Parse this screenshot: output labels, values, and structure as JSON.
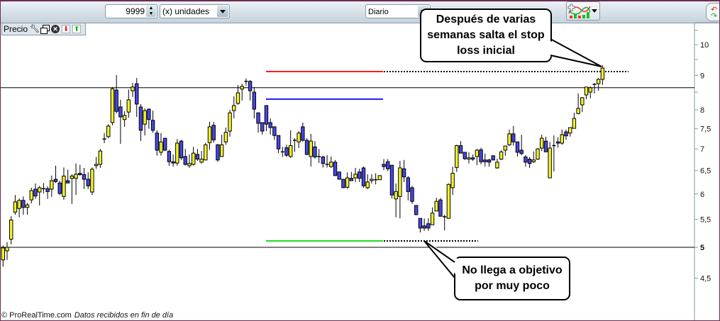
{
  "toolbar": {
    "units_value": "9999",
    "units_select": "(x) unidades",
    "period_select": "Diario",
    "indicator_button_icon": "add-indicator-icon",
    "right_icon": "arrows-cycle-icon"
  },
  "panel": {
    "label": "Precio",
    "icons": [
      "wrench-icon",
      "windows-icon",
      "close-circle-icon",
      "move-down-icon",
      "move-up-icon"
    ]
  },
  "callouts": {
    "top": [
      "Después de varias",
      "semanas salta el stop",
      "loss inicial"
    ],
    "bottom": [
      "No llega a objetivo",
      "por muy poco"
    ]
  },
  "footer": {
    "copyright": "© ProRealTime.com",
    "status": "Datos recibidos en fin de día"
  },
  "chart_data": {
    "type": "candlestick",
    "period": "Diario",
    "yscale": "log",
    "ylim": [
      4.1,
      10.8
    ],
    "yticks": [
      "10",
      "9",
      "8",
      "7,5",
      "7",
      "6,5",
      "6",
      "5,5",
      "5",
      "4,5"
    ],
    "ytick_values": [
      10,
      9,
      8,
      7.5,
      7,
      6.5,
      6,
      5.5,
      5,
      4.5
    ],
    "minor_ticks": [
      10.5,
      9.5,
      8.5
    ],
    "grid": false,
    "colors": {
      "up": "#f4f42a",
      "down": "#4646e8",
      "stop": "#ff1a1a",
      "entry": "#1a1aee",
      "target": "#22dd22"
    },
    "horizontal_lines": [
      8.63,
      5.0
    ],
    "levels": {
      "stop": {
        "value": 9.12,
        "color": "#ff1a1a"
      },
      "entry": {
        "value": 8.3,
        "color": "#1a1aee"
      },
      "target": {
        "value": 5.11,
        "color": "#22dd22"
      }
    },
    "ohlc_fields": [
      "open",
      "high",
      "low",
      "close"
    ],
    "ohlc": [
      [
        4.79,
        5.03,
        4.68,
        4.99
      ],
      [
        4.94,
        5.09,
        4.79,
        5.0
      ],
      [
        5.14,
        5.56,
        5.05,
        5.49
      ],
      [
        5.64,
        5.98,
        5.59,
        5.84
      ],
      [
        5.71,
        5.91,
        5.54,
        5.87
      ],
      [
        5.87,
        5.95,
        5.59,
        5.73
      ],
      [
        5.73,
        5.82,
        5.59,
        5.78
      ],
      [
        5.88,
        6.13,
        5.81,
        6.07
      ],
      [
        6.1,
        6.22,
        5.9,
        5.96
      ],
      [
        6.04,
        6.17,
        5.77,
        6.13
      ],
      [
        6.11,
        6.23,
        6.01,
        6.11
      ],
      [
        6.11,
        6.16,
        5.9,
        6.05
      ],
      [
        6.1,
        6.39,
        5.94,
        6.28
      ],
      [
        6.31,
        6.61,
        6.23,
        6.26
      ],
      [
        6.23,
        6.28,
        5.98,
        6.01
      ],
      [
        5.95,
        6.57,
        5.88,
        6.38
      ],
      [
        6.28,
        6.52,
        6.23,
        6.23
      ],
      [
        6.33,
        6.42,
        5.8,
        6.38
      ],
      [
        6.33,
        6.66,
        5.98,
        6.42
      ],
      [
        6.44,
        6.63,
        6.39,
        6.41
      ],
      [
        6.41,
        6.56,
        6.1,
        6.31
      ],
      [
        6.31,
        6.46,
        6.1,
        6.17
      ],
      [
        6.04,
        6.57,
        5.98,
        6.53
      ],
      [
        6.61,
        6.81,
        6.54,
        6.64
      ],
      [
        6.64,
        7.0,
        6.56,
        6.95
      ],
      [
        7.24,
        7.39,
        7.14,
        7.24
      ],
      [
        7.3,
        7.62,
        7.26,
        7.57
      ],
      [
        7.66,
        8.65,
        7.59,
        8.6
      ],
      [
        8.56,
        9.01,
        7.9,
        7.96
      ],
      [
        8.08,
        8.28,
        7.12,
        7.81
      ],
      [
        7.74,
        7.96,
        7.55,
        7.85
      ],
      [
        7.94,
        8.58,
        7.79,
        8.28
      ],
      [
        8.54,
        8.77,
        8.36,
        8.65
      ],
      [
        8.75,
        8.92,
        7.81,
        8.16
      ],
      [
        8.08,
        8.16,
        7.19,
        7.46
      ],
      [
        7.62,
        8.04,
        7.33,
        7.98
      ],
      [
        8.02,
        8.04,
        7.5,
        7.74
      ],
      [
        7.72,
        7.98,
        7.4,
        7.46
      ],
      [
        7.39,
        7.46,
        6.84,
        6.97
      ],
      [
        6.92,
        7.39,
        6.84,
        7.17
      ],
      [
        7.26,
        7.26,
        6.95,
        6.97
      ],
      [
        6.94,
        6.98,
        6.61,
        6.7
      ],
      [
        6.7,
        6.87,
        6.59,
        6.67
      ],
      [
        6.67,
        7.24,
        6.61,
        7.14
      ],
      [
        7.19,
        7.22,
        6.74,
        6.79
      ],
      [
        6.82,
        7.0,
        6.61,
        6.64
      ],
      [
        6.61,
        6.87,
        6.56,
        6.66
      ],
      [
        6.64,
        7.05,
        6.61,
        6.9
      ],
      [
        6.87,
        7.0,
        6.72,
        6.76
      ],
      [
        6.69,
        6.95,
        6.66,
        6.76
      ],
      [
        6.74,
        7.15,
        6.74,
        7.1
      ],
      [
        7.15,
        7.68,
        6.98,
        7.55
      ],
      [
        7.59,
        7.68,
        7.15,
        7.22
      ],
      [
        7.1,
        7.12,
        6.7,
        6.74
      ],
      [
        6.82,
        7.35,
        6.82,
        7.1
      ],
      [
        7.17,
        7.53,
        7.1,
        7.41
      ],
      [
        7.44,
        8.0,
        7.3,
        7.92
      ],
      [
        7.98,
        8.38,
        7.77,
        8.12
      ],
      [
        8.18,
        8.71,
        8.14,
        8.48
      ],
      [
        8.59,
        8.75,
        8.26,
        8.67
      ],
      [
        8.82,
        8.91,
        8.69,
        8.82
      ],
      [
        8.82,
        8.86,
        8.26,
        8.54
      ],
      [
        8.5,
        8.65,
        7.77,
        8.02
      ],
      [
        7.92,
        7.92,
        7.4,
        7.64
      ],
      [
        7.66,
        7.66,
        7.35,
        7.44
      ],
      [
        8.12,
        8.12,
        7.44,
        7.62
      ],
      [
        7.66,
        7.77,
        7.35,
        7.53
      ],
      [
        7.55,
        7.55,
        7.22,
        7.33
      ],
      [
        7.33,
        7.33,
        6.9,
        7.0
      ],
      [
        6.93,
        7.05,
        6.81,
        6.93
      ],
      [
        7.03,
        7.1,
        6.81,
        6.85
      ],
      [
        6.82,
        7.46,
        6.79,
        7.08
      ],
      [
        7.21,
        7.26,
        6.93,
        7.21
      ],
      [
        7.17,
        7.44,
        7.02,
        7.39
      ],
      [
        7.55,
        7.66,
        7.17,
        7.21
      ],
      [
        7.21,
        7.26,
        6.85,
        6.87
      ],
      [
        6.82,
        7.37,
        6.59,
        7.19
      ],
      [
        7.05,
        7.19,
        6.77,
        6.81
      ],
      [
        6.82,
        7.0,
        6.67,
        6.82
      ],
      [
        6.81,
        6.84,
        6.57,
        6.66
      ],
      [
        6.64,
        6.85,
        6.57,
        6.64
      ],
      [
        6.59,
        6.82,
        6.56,
        6.69
      ],
      [
        6.69,
        6.74,
        6.38,
        6.39
      ],
      [
        6.47,
        6.47,
        6.31,
        6.31
      ],
      [
        6.31,
        6.31,
        6.13,
        6.13
      ],
      [
        6.14,
        6.46,
        6.11,
        6.34
      ],
      [
        6.33,
        6.47,
        6.28,
        6.28
      ],
      [
        6.34,
        6.56,
        6.25,
        6.42
      ],
      [
        6.47,
        6.54,
        6.25,
        6.33
      ],
      [
        6.56,
        6.59,
        6.13,
        6.17
      ],
      [
        6.13,
        6.42,
        6.1,
        6.25
      ],
      [
        6.28,
        6.42,
        6.22,
        6.31
      ],
      [
        6.3,
        6.44,
        6.2,
        6.3
      ],
      [
        6.3,
        6.39,
        6.3,
        6.39
      ],
      [
        6.64,
        6.76,
        6.51,
        6.59
      ],
      [
        6.7,
        6.76,
        6.49,
        6.54
      ],
      [
        6.62,
        6.62,
        5.91,
        5.98
      ],
      [
        5.9,
        6.22,
        5.54,
        6.05
      ],
      [
        5.95,
        6.72,
        5.52,
        6.56
      ],
      [
        6.54,
        6.74,
        6.25,
        6.36
      ],
      [
        6.34,
        6.38,
        5.87,
        6.05
      ],
      [
        6.13,
        6.17,
        5.8,
        5.85
      ],
      [
        5.77,
        5.77,
        5.59,
        5.59
      ],
      [
        5.52,
        5.52,
        5.26,
        5.34
      ],
      [
        5.38,
        5.52,
        5.29,
        5.34
      ],
      [
        5.42,
        5.52,
        5.29,
        5.34
      ],
      [
        5.4,
        5.73,
        5.4,
        5.62
      ],
      [
        5.66,
        5.92,
        5.66,
        5.85
      ],
      [
        5.88,
        5.92,
        5.56,
        5.56
      ],
      [
        5.55,
        5.59,
        5.3,
        5.55
      ],
      [
        5.52,
        6.22,
        5.52,
        6.2
      ],
      [
        6.13,
        6.59,
        5.98,
        6.44
      ],
      [
        6.57,
        7.1,
        6.47,
        7.08
      ],
      [
        7.08,
        7.19,
        6.9,
        6.9
      ],
      [
        6.92,
        6.92,
        6.74,
        6.77
      ],
      [
        6.76,
        6.92,
        6.66,
        6.79
      ],
      [
        6.79,
        6.87,
        6.72,
        6.76
      ],
      [
        6.82,
        7.0,
        6.62,
        6.97
      ],
      [
        6.98,
        7.03,
        6.64,
        6.7
      ],
      [
        6.74,
        6.89,
        6.59,
        6.7
      ],
      [
        6.74,
        6.77,
        6.59,
        6.69
      ],
      [
        6.84,
        6.84,
        6.74,
        6.74
      ],
      [
        6.56,
        6.77,
        6.54,
        6.69
      ],
      [
        6.76,
        6.97,
        6.74,
        6.93
      ],
      [
        6.97,
        7.07,
        6.84,
        7.07
      ],
      [
        7.1,
        7.48,
        7.07,
        7.37
      ],
      [
        7.37,
        7.57,
        7.08,
        7.17
      ],
      [
        7.17,
        7.17,
        6.82,
        6.92
      ],
      [
        6.97,
        7.35,
        6.85,
        6.89
      ],
      [
        6.81,
        6.85,
        6.59,
        6.69
      ],
      [
        6.76,
        6.81,
        6.56,
        6.66
      ],
      [
        6.7,
        6.94,
        6.67,
        6.74
      ],
      [
        6.76,
        7.02,
        6.74,
        7.0
      ],
      [
        7.02,
        7.35,
        6.95,
        7.26
      ],
      [
        7.19,
        7.3,
        6.93,
        6.93
      ],
      [
        6.34,
        7.17,
        6.34,
        7.02
      ],
      [
        7.08,
        7.33,
        6.48,
        7.08
      ],
      [
        7.17,
        7.28,
        7.03,
        7.14
      ],
      [
        7.14,
        7.48,
        7.1,
        7.35
      ],
      [
        7.42,
        7.48,
        7.22,
        7.32
      ],
      [
        7.39,
        7.53,
        7.3,
        7.53
      ],
      [
        7.51,
        7.92,
        7.51,
        7.77
      ],
      [
        7.9,
        8.46,
        7.88,
        8.04
      ],
      [
        8.14,
        8.36,
        7.94,
        8.34
      ],
      [
        8.42,
        8.65,
        8.3,
        8.65
      ],
      [
        8.5,
        8.67,
        8.32,
        8.63
      ],
      [
        8.73,
        8.77,
        8.46,
        8.73
      ],
      [
        8.75,
        8.92,
        8.54,
        8.88
      ],
      [
        8.88,
        9.32,
        8.71,
        9.23
      ]
    ]
  }
}
